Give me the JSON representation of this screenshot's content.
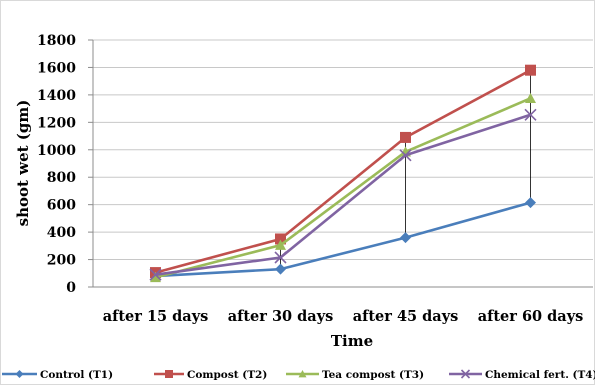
{
  "chart_data": {
    "type": "line",
    "categories": [
      "after 15 days",
      "after 30 days",
      "after 45 days",
      "after 60 days"
    ],
    "series": [
      {
        "name": "Control (T1)",
        "color": "#4a7ebb",
        "marker": "diamond",
        "values": [
          80,
          130,
          360,
          615
        ]
      },
      {
        "name": "Compost (T2)",
        "color": "#c0504d",
        "marker": "square",
        "values": [
          105,
          350,
          1090,
          1580
        ]
      },
      {
        "name": "Tea compost  (T3)",
        "color": "#9bbb59",
        "marker": "triangle",
        "values": [
          70,
          305,
          985,
          1375
        ]
      },
      {
        "name": "Chemical fert. (T4)",
        "color": "#8064a2",
        "marker": "x",
        "values": [
          90,
          215,
          960,
          1255
        ]
      }
    ],
    "yticks": [
      "0",
      "200",
      "400",
      "600",
      "800",
      "1000",
      "1200",
      "1400",
      "1600",
      "1800"
    ],
    "ylim": [
      0,
      1800
    ],
    "xlabel": "Time",
    "ylabel": "shoot wet (gm)",
    "grid": "horizontal",
    "legend": "bottom",
    "drop_lines": true
  }
}
